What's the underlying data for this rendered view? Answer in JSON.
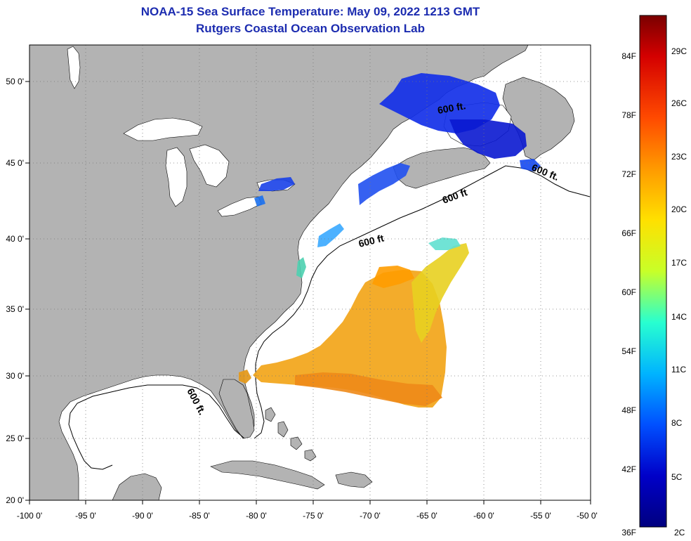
{
  "title_line1": "NOAA-15 Sea Surface Temperature:  May 09, 2022 1213 GMT",
  "title_line2": "Rutgers Coastal Ocean Observation Lab",
  "map": {
    "lon_range": [
      -100,
      -50
    ],
    "lat_range": [
      20,
      52.5
    ],
    "lon_ticks": [
      "-100 0'",
      "-95 0'",
      "-90 0'",
      "-85 0'",
      "-80 0'",
      "-75 0'",
      "-70 0'",
      "-65 0'",
      "-60 0'",
      "-55 0'",
      "-50 0'"
    ],
    "lat_ticks": [
      "20 0'",
      "25 0'",
      "30 0'",
      "35 0'",
      "40 0'",
      "45 0'",
      "50 0'"
    ],
    "grid": true,
    "isobath_label": "600 ft.",
    "isobath_label_alt": "600 ft",
    "land_color": "#b3b3b3",
    "ocean_color": "#ffffff"
  },
  "colorbar": {
    "f_labels": [
      "84F",
      "78F",
      "72F",
      "66F",
      "60F",
      "54F",
      "48F",
      "42F",
      "36F"
    ],
    "c_labels": [
      "29C",
      "26C",
      "23C",
      "20C",
      "17C",
      "14C",
      "11C",
      "8C",
      "5C",
      "2C"
    ],
    "colors": [
      "#7a0000",
      "#d40000",
      "#ff4a00",
      "#ff9a00",
      "#ffe000",
      "#c8ff28",
      "#28ffd0",
      "#00b4ff",
      "#0050ff",
      "#0000c8",
      "#000080"
    ]
  }
}
